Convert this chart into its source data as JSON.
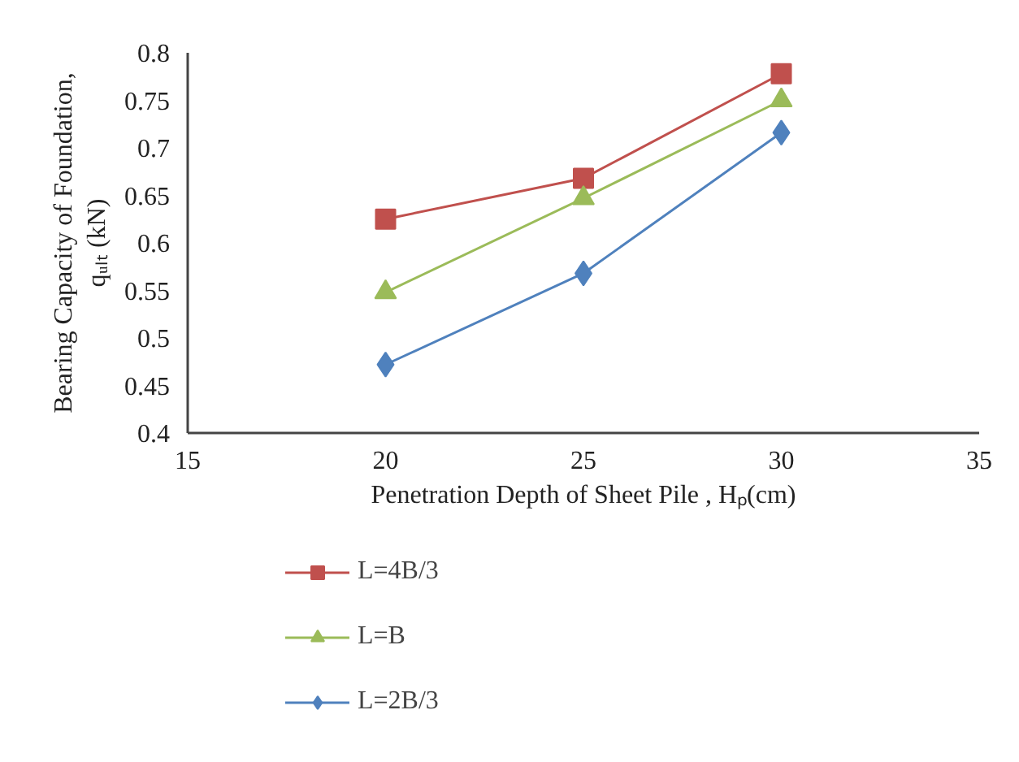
{
  "chart_data": {
    "type": "line",
    "xlabel": "Penetration Depth of Sheet Pile , Hₚ(cm)",
    "ylabel": "Bearing Capacity of Foundation,\nqᵤₗₜ (kN)",
    "x": [
      20,
      25,
      30
    ],
    "series": [
      {
        "name": "L=4B/3",
        "color": "#c0504d",
        "marker": "square",
        "values": [
          0.625,
          0.668,
          0.778
        ]
      },
      {
        "name": "L=B",
        "color": "#9bbb59",
        "marker": "triangle",
        "values": [
          0.548,
          0.647,
          0.75
        ]
      },
      {
        "name": "L=2B/3",
        "color": "#4f81bd",
        "marker": "diamond",
        "values": [
          0.472,
          0.568,
          0.716
        ]
      }
    ],
    "xlim": [
      15,
      35
    ],
    "xticks": [
      15,
      20,
      25,
      30,
      35
    ],
    "ylim": [
      0.4,
      0.8
    ],
    "yticks": [
      0.4,
      0.45,
      0.5,
      0.55,
      0.6,
      0.65,
      0.7,
      0.75,
      0.8
    ],
    "grid": false,
    "legend": "bottom",
    "line_style": "solid"
  }
}
